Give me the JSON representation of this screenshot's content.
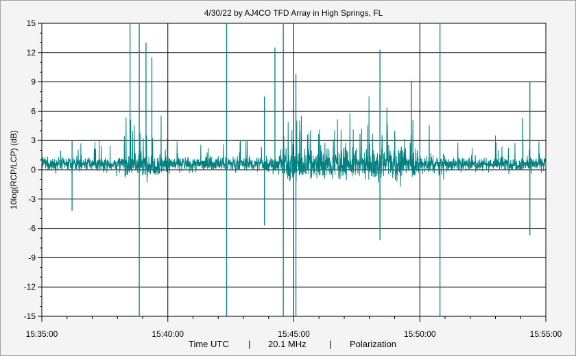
{
  "chart_data": {
    "type": "line",
    "title": "4/30/22  by  AJ4CO TFD Array  in  High Springs, FL",
    "ylabel": "10log(RCP/LCP)  (dB)",
    "footer": {
      "x_label": "Time UTC",
      "sep1": "|",
      "frequency": "20.1 MHz",
      "sep2": "|",
      "mode": "Polarization"
    },
    "xlim": [
      "15:35:00",
      "15:55:00"
    ],
    "ylim": [
      -15,
      15
    ],
    "x_ticks": [
      "15:35:00",
      "15:40:00",
      "15:45:00",
      "15:50:00",
      "15:55:00"
    ],
    "y_ticks": [
      "15",
      "12",
      "9",
      "6",
      "3",
      "0",
      "-3",
      "-6",
      "-9",
      "-12",
      "-15"
    ],
    "grid": true,
    "series_color": "#008080",
    "baseline_db": 0.6,
    "noise_db": 0.5,
    "spikes": [
      {
        "time": "15:36:12",
        "high": 3.0,
        "low": -4.2
      },
      {
        "time": "15:38:30",
        "high": 15.0,
        "low": 0
      },
      {
        "time": "15:38:52",
        "high": 15.0,
        "low": -15.0
      },
      {
        "time": "15:39:08",
        "high": 13.0,
        "low": 0
      },
      {
        "time": "15:39:22",
        "high": 11.5,
        "low": 0
      },
      {
        "time": "15:42:20",
        "high": 15.0,
        "low": -15.0
      },
      {
        "time": "15:43:50",
        "high": 7.5,
        "low": -5.7
      },
      {
        "time": "15:44:15",
        "high": 12.5,
        "low": 0
      },
      {
        "time": "15:44:35",
        "high": 15.0,
        "low": -15.0
      },
      {
        "time": "15:45:05",
        "high": 9.8,
        "low": -15.0
      },
      {
        "time": "15:48:25",
        "high": 12.3,
        "low": -7.2
      },
      {
        "time": "15:49:40",
        "high": 9.1,
        "low": 0
      },
      {
        "time": "15:50:48",
        "high": 15.0,
        "low": -15.0
      },
      {
        "time": "15:54:05",
        "high": 5.3,
        "low": 0
      },
      {
        "time": "15:54:22",
        "high": 9.0,
        "low": -6.7
      }
    ]
  }
}
